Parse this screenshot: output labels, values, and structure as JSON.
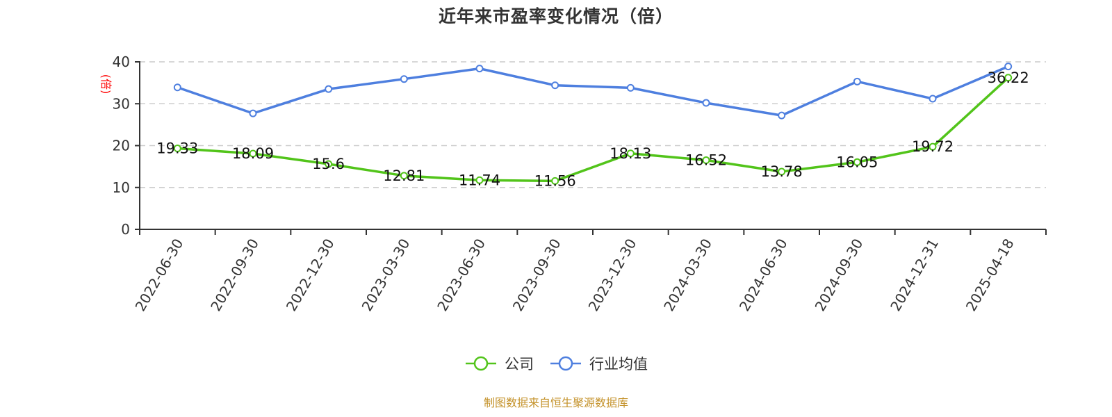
{
  "title": "近年来市盈率变化情况（倍）",
  "footer": "制图数据来自恒生聚源数据库",
  "colors": {
    "company": "#52c41a",
    "industry": "#4e7fdf",
    "axis": "#333333",
    "grid": "#cccccc",
    "ylabel": "#ff0000",
    "footer": "#c4922a"
  },
  "legend": [
    {
      "label": "公司",
      "color": "#52c41a"
    },
    {
      "label": "行业均值",
      "color": "#4e7fdf"
    }
  ],
  "chart_data": {
    "type": "line",
    "title": "近年来市盈率变化情况（倍）",
    "xlabel": "",
    "ylabel": "(倍)",
    "ylim": [
      0,
      40
    ],
    "yticks": [
      0,
      10,
      20,
      30,
      40
    ],
    "grid": true,
    "legend_position": "bottom",
    "categories": [
      "2022-06-30",
      "2022-09-30",
      "2022-12-30",
      "2023-03-30",
      "2023-06-30",
      "2023-09-30",
      "2023-12-30",
      "2024-03-30",
      "2024-06-30",
      "2024-09-30",
      "2024-12-31",
      "2025-04-18"
    ],
    "series": [
      {
        "name": "公司",
        "color": "#52c41a",
        "show_labels": true,
        "values": [
          19.33,
          18.09,
          15.6,
          12.81,
          11.74,
          11.56,
          18.13,
          16.52,
          13.78,
          16.05,
          19.72,
          36.22
        ]
      },
      {
        "name": "行业均值",
        "color": "#4e7fdf",
        "show_labels": false,
        "values": [
          33.9,
          27.7,
          33.5,
          35.9,
          38.4,
          34.4,
          33.8,
          30.2,
          27.2,
          35.3,
          31.2,
          38.9
        ]
      }
    ]
  }
}
